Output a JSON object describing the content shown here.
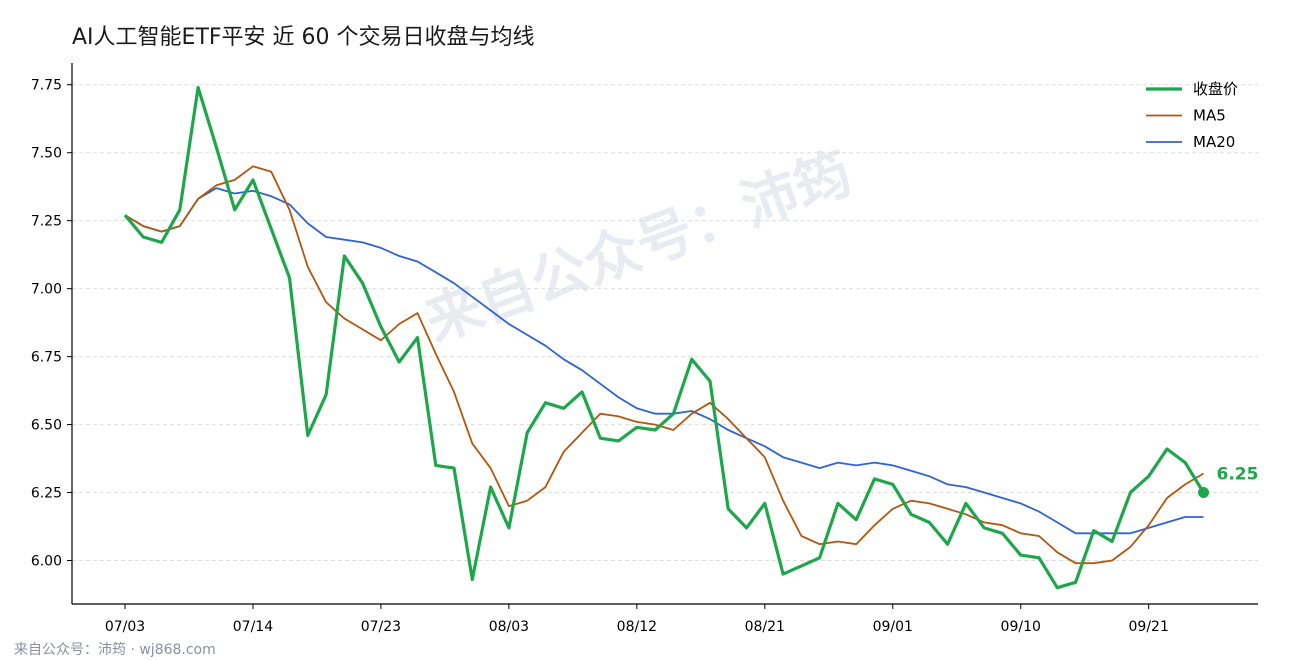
{
  "chart_data": {
    "type": "line",
    "title": "AI人工智能ETF平安 近 60 个交易日收盘与均线",
    "xlabel": "",
    "ylabel": "",
    "x": [
      "07/03",
      "07/04",
      "07/07",
      "07/08",
      "07/09",
      "07/10",
      "07/11",
      "07/14",
      "07/15",
      "07/16",
      "07/17",
      "07/18",
      "07/21",
      "07/22",
      "07/23",
      "07/24",
      "07/25",
      "07/28",
      "07/29",
      "07/30",
      "07/31",
      "08/01",
      "08/04",
      "08/05",
      "08/06",
      "08/07",
      "08/08",
      "08/11",
      "08/12",
      "08/13",
      "08/14",
      "08/15",
      "08/18",
      "08/19",
      "08/20",
      "08/21",
      "08/22",
      "08/25",
      "08/26",
      "08/27",
      "08/28",
      "08/29",
      "09/01",
      "09/02",
      "09/03",
      "09/04",
      "09/05",
      "09/08",
      "09/09",
      "09/10",
      "09/11",
      "09/12",
      "09/15",
      "09/16",
      "09/17",
      "09/18",
      "09/19",
      "09/22",
      "09/23",
      "09/24"
    ],
    "xticks": [
      "07/03",
      "07/14",
      "07/23",
      "08/03",
      "08/12",
      "08/21",
      "09/01",
      "09/10",
      "09/21"
    ],
    "xtick_positions": [
      0,
      7,
      14,
      21,
      28,
      35,
      42,
      49,
      56
    ],
    "ylim": [
      5.84,
      7.83
    ],
    "yticks": [
      6.0,
      6.25,
      6.5,
      6.75,
      7.0,
      7.25,
      7.5,
      7.75
    ],
    "ytick_labels": [
      "6.00",
      "6.25",
      "6.50",
      "6.75",
      "7.00",
      "7.25",
      "7.50",
      "7.75"
    ],
    "grid": "horizontal",
    "legend_position": "top-right",
    "series": [
      {
        "name": "收盘价",
        "color": "#1ea64a",
        "values": [
          7.27,
          7.19,
          7.17,
          7.29,
          7.74,
          7.52,
          7.29,
          7.4,
          7.22,
          7.04,
          6.46,
          6.61,
          7.12,
          7.02,
          6.86,
          6.73,
          6.82,
          6.35,
          6.34,
          5.93,
          6.27,
          6.12,
          6.47,
          6.58,
          6.56,
          6.62,
          6.45,
          6.44,
          6.49,
          6.48,
          6.54,
          6.74,
          6.66,
          6.19,
          6.12,
          6.21,
          5.95,
          5.98,
          6.01,
          6.21,
          6.15,
          6.3,
          6.28,
          6.17,
          6.14,
          6.06,
          6.21,
          6.12,
          6.1,
          6.02,
          6.01,
          5.9,
          5.92,
          6.11,
          6.07,
          6.25,
          6.31,
          6.41,
          6.36,
          6.25
        ]
      },
      {
        "name": "MA5",
        "color": "#b5560f",
        "values": [
          7.27,
          7.23,
          7.21,
          7.23,
          7.33,
          7.38,
          7.4,
          7.45,
          7.43,
          7.29,
          7.08,
          6.95,
          6.89,
          6.85,
          6.81,
          6.87,
          6.91,
          6.76,
          6.62,
          6.43,
          6.34,
          6.2,
          6.22,
          6.27,
          6.4,
          6.47,
          6.54,
          6.53,
          6.51,
          6.5,
          6.48,
          6.54,
          6.58,
          6.52,
          6.45,
          6.38,
          6.22,
          6.09,
          6.06,
          6.07,
          6.06,
          6.13,
          6.19,
          6.22,
          6.21,
          6.19,
          6.17,
          6.14,
          6.13,
          6.1,
          6.09,
          6.03,
          5.99,
          5.99,
          6.0,
          6.05,
          6.13,
          6.23,
          6.28,
          6.32
        ]
      },
      {
        "name": "MA20",
        "color": "#2f63d6",
        "values": [
          7.27,
          7.23,
          7.21,
          7.23,
          7.33,
          7.37,
          7.35,
          7.36,
          7.34,
          7.31,
          7.24,
          7.19,
          7.18,
          7.17,
          7.15,
          7.12,
          7.1,
          7.06,
          7.02,
          6.97,
          6.92,
          6.87,
          6.83,
          6.79,
          6.74,
          6.7,
          6.65,
          6.6,
          6.56,
          6.54,
          6.54,
          6.55,
          6.52,
          6.48,
          6.45,
          6.42,
          6.38,
          6.36,
          6.34,
          6.36,
          6.35,
          6.36,
          6.35,
          6.33,
          6.31,
          6.28,
          6.27,
          6.25,
          6.23,
          6.21,
          6.18,
          6.14,
          6.1,
          6.1,
          6.1,
          6.1,
          6.12,
          6.14,
          6.16,
          6.16
        ]
      }
    ],
    "end_label": "6.25"
  },
  "watermark": "来自公众号：沛筠",
  "footer": "来自公众号：沛筠 · wj868.com"
}
